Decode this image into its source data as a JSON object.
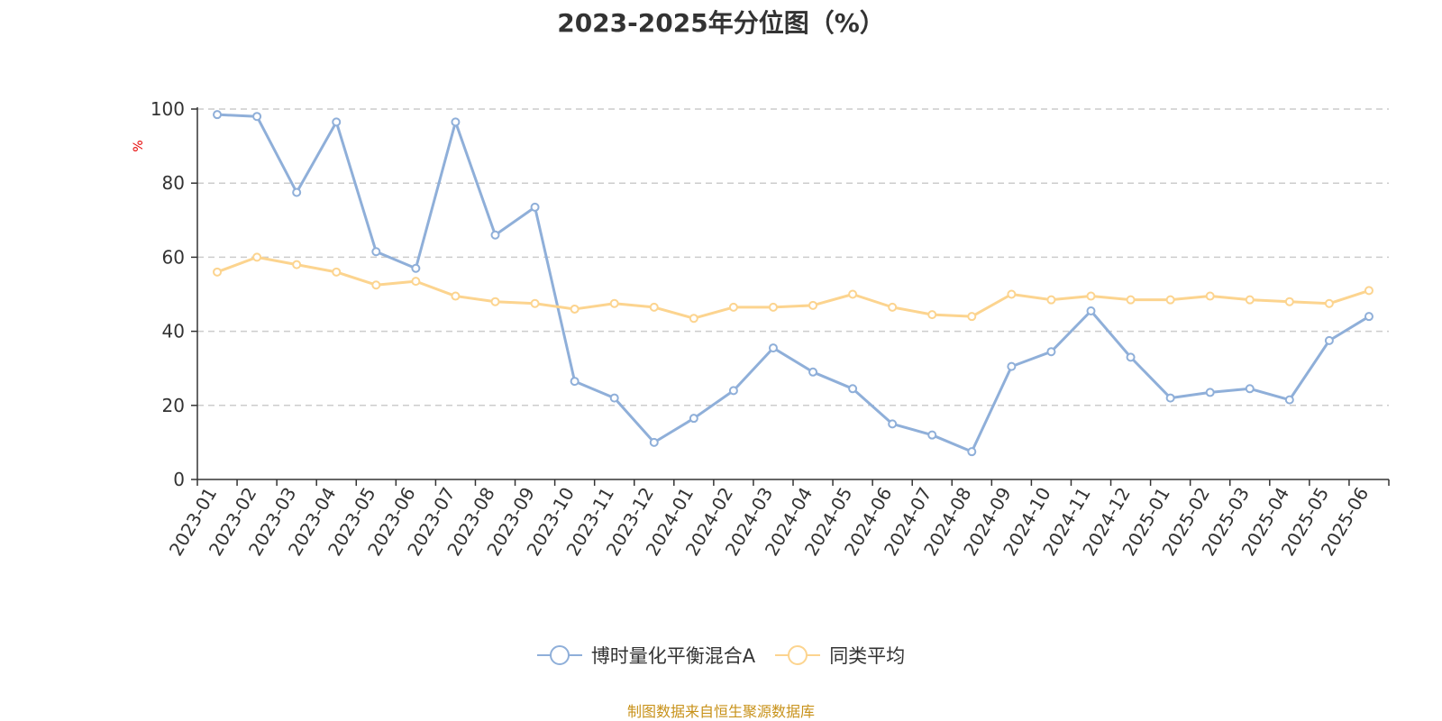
{
  "chart_data": {
    "type": "line",
    "title": "2023-2025年分位图（%）",
    "ylabel": "%",
    "ylim": [
      0,
      100
    ],
    "yticks": [
      0,
      20,
      40,
      60,
      80,
      100
    ],
    "grid": true,
    "legend_position": "bottom",
    "x": [
      "2023-01",
      "2023-02",
      "2023-03",
      "2023-04",
      "2023-05",
      "2023-06",
      "2023-07",
      "2023-08",
      "2023-09",
      "2023-10",
      "2023-11",
      "2023-12",
      "2024-01",
      "2024-02",
      "2024-03",
      "2024-04",
      "2024-05",
      "2024-06",
      "2024-07",
      "2024-08",
      "2024-09",
      "2024-10",
      "2024-11",
      "2024-12",
      "2025-01",
      "2025-02",
      "2025-03",
      "2025-04",
      "2025-05",
      "2025-06"
    ],
    "series": [
      {
        "name": "博时量化平衡混合A",
        "color": "#8fafd9",
        "values": [
          98.5,
          98,
          77.5,
          96.5,
          61.5,
          57,
          96.5,
          66,
          73.5,
          26.5,
          22,
          10,
          16.5,
          24,
          35.5,
          29,
          24.5,
          15,
          12,
          7.5,
          30.5,
          34.5,
          45.5,
          33,
          22,
          23.5,
          24.5,
          21.5,
          37.5,
          44
        ]
      },
      {
        "name": "同类平均",
        "color": "#fcd48f",
        "values": [
          56,
          60,
          58,
          56,
          52.5,
          53.5,
          49.5,
          48,
          47.5,
          46,
          47.5,
          46.5,
          43.5,
          46.5,
          46.5,
          47,
          50,
          46.5,
          44.5,
          44,
          50,
          48.5,
          49.5,
          48.5,
          48.5,
          49.5,
          48.5,
          48,
          47.5,
          51
        ]
      }
    ]
  },
  "source_note": "制图数据来自恒生聚源数据库",
  "colors": {
    "axis": "#333333",
    "grid": "#cccccc",
    "ylabel": "#e60000",
    "source": "#c8921a"
  }
}
